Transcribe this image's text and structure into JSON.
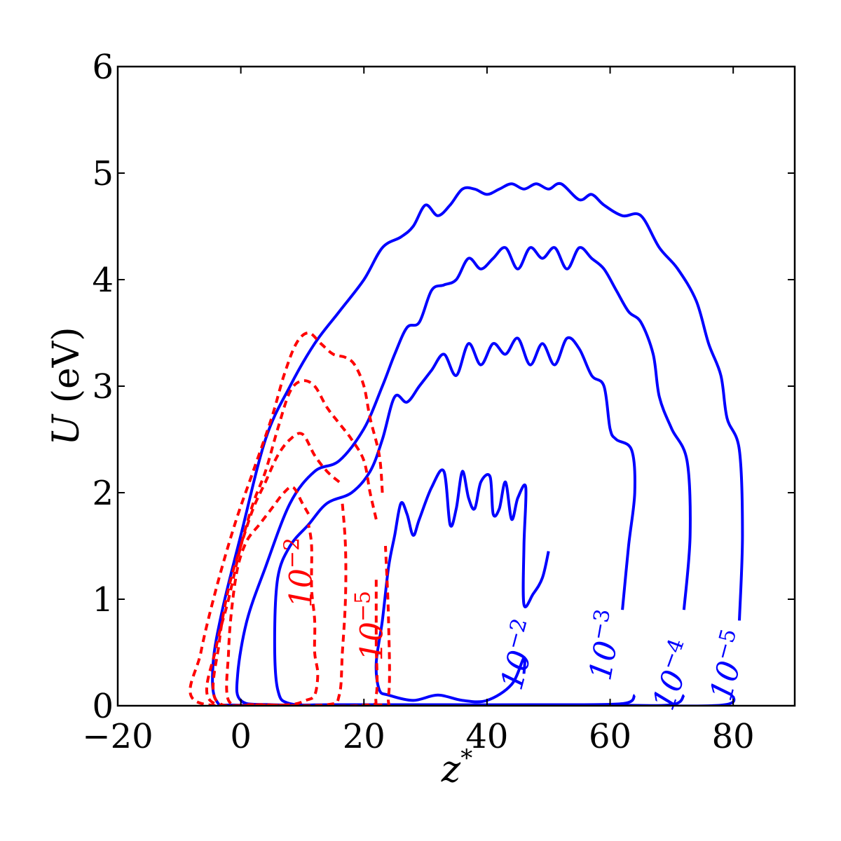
{
  "chart_data": {
    "type": "contour",
    "x_label_main": "z",
    "x_label_sup": "*",
    "y_label_main": "U",
    "y_label_rest": " (eV)",
    "xlim": [
      -20,
      90
    ],
    "ylim": [
      0,
      6
    ],
    "x_ticks": [
      -20,
      0,
      20,
      40,
      60,
      80
    ],
    "y_ticks": [
      0,
      1,
      2,
      3,
      4,
      5,
      6
    ],
    "x_tick_labels": [
      "−20",
      "0",
      "20",
      "40",
      "60",
      "80"
    ],
    "y_tick_labels": [
      "0",
      "1",
      "2",
      "3",
      "4",
      "5",
      "6"
    ],
    "grid": false,
    "colors": {
      "blue": "#0000ff",
      "red": "#ff0000"
    },
    "contours": [
      {
        "name": "blue-1e-2",
        "color": "#0000ff",
        "style": "solid",
        "label_base": "10",
        "label_exp": "−2",
        "points": [
          [
            50,
            1.45
          ],
          [
            49,
            1.2
          ],
          [
            47.5,
            1.05
          ],
          [
            46,
            0.95
          ],
          [
            46,
            1.5
          ],
          [
            46.3,
            2.05
          ],
          [
            45,
            1.95
          ],
          [
            44,
            1.75
          ],
          [
            43,
            2.1
          ],
          [
            42,
            1.85
          ],
          [
            41,
            1.8
          ],
          [
            40.5,
            2.15
          ],
          [
            39,
            2.1
          ],
          [
            38,
            1.85
          ],
          [
            37,
            1.95
          ],
          [
            36,
            2.2
          ],
          [
            35,
            1.85
          ],
          [
            34,
            1.7
          ],
          [
            33,
            2.2
          ],
          [
            31,
            2.05
          ],
          [
            29,
            1.75
          ],
          [
            28,
            1.6
          ],
          [
            27,
            1.8
          ],
          [
            26,
            1.9
          ],
          [
            25,
            1.6
          ],
          [
            24,
            1.3
          ],
          [
            23,
            0.8
          ],
          [
            22,
            0.4
          ],
          [
            22.5,
            0.15
          ],
          [
            24,
            0.1
          ],
          [
            28,
            0.05
          ],
          [
            32,
            0.1
          ],
          [
            36,
            0.05
          ],
          [
            40,
            0.05
          ],
          [
            44,
            0.2
          ],
          [
            46,
            0.45
          ],
          [
            46,
            0.3
          ]
        ]
      },
      {
        "name": "blue-1e-3",
        "color": "#0000ff",
        "style": "solid",
        "label_base": "10",
        "label_exp": "−3",
        "points": [
          [
            62,
            0.9
          ],
          [
            63,
            1.5
          ],
          [
            64,
            2.0
          ],
          [
            63.5,
            2.4
          ],
          [
            61,
            2.5
          ],
          [
            60,
            2.6
          ],
          [
            59,
            3.0
          ],
          [
            57,
            3.1
          ],
          [
            55,
            3.35
          ],
          [
            53,
            3.45
          ],
          [
            51,
            3.2
          ],
          [
            49,
            3.4
          ],
          [
            47,
            3.2
          ],
          [
            45,
            3.45
          ],
          [
            43,
            3.3
          ],
          [
            41,
            3.4
          ],
          [
            39,
            3.2
          ],
          [
            37,
            3.4
          ],
          [
            35,
            3.1
          ],
          [
            33,
            3.3
          ],
          [
            31,
            3.15
          ],
          [
            29,
            3.0
          ],
          [
            27,
            2.85
          ],
          [
            25,
            2.9
          ],
          [
            23,
            2.5
          ],
          [
            21,
            2.2
          ],
          [
            18,
            2.0
          ],
          [
            14,
            1.9
          ],
          [
            11,
            1.7
          ],
          [
            8,
            1.5
          ],
          [
            6,
            1.2
          ],
          [
            5.5,
            0.6
          ],
          [
            6,
            0.15
          ],
          [
            8,
            0.02
          ],
          [
            15,
            0.01
          ],
          [
            30,
            0.01
          ],
          [
            50,
            0.01
          ],
          [
            62,
            0.02
          ],
          [
            64,
            0.1
          ]
        ]
      },
      {
        "name": "blue-1e-4",
        "color": "#0000ff",
        "style": "solid",
        "label_base": "10",
        "label_exp": "−4",
        "points": [
          [
            72,
            0.9
          ],
          [
            73,
            1.6
          ],
          [
            72.5,
            2.3
          ],
          [
            70,
            2.6
          ],
          [
            68,
            2.9
          ],
          [
            67,
            3.3
          ],
          [
            65,
            3.6
          ],
          [
            63,
            3.7
          ],
          [
            61,
            3.9
          ],
          [
            59,
            4.1
          ],
          [
            57,
            4.2
          ],
          [
            55,
            4.3
          ],
          [
            53,
            4.1
          ],
          [
            51,
            4.3
          ],
          [
            49,
            4.2
          ],
          [
            47,
            4.3
          ],
          [
            45,
            4.1
          ],
          [
            43,
            4.3
          ],
          [
            41,
            4.2
          ],
          [
            39,
            4.1
          ],
          [
            37,
            4.2
          ],
          [
            35,
            4.0
          ],
          [
            33,
            3.95
          ],
          [
            31,
            3.9
          ],
          [
            29,
            3.6
          ],
          [
            27,
            3.55
          ],
          [
            25,
            3.3
          ],
          [
            23,
            3.0
          ],
          [
            20,
            2.6
          ],
          [
            16,
            2.3
          ],
          [
            12,
            2.2
          ],
          [
            8,
            1.9
          ],
          [
            4,
            1.3
          ],
          [
            1,
            0.8
          ],
          [
            -0.5,
            0.3
          ],
          [
            0,
            0.05
          ],
          [
            5,
            0.01
          ],
          [
            20,
            0.005
          ],
          [
            40,
            0.005
          ],
          [
            60,
            0.005
          ],
          [
            70,
            0.01
          ],
          [
            72,
            0.1
          ]
        ]
      },
      {
        "name": "blue-1e-5",
        "color": "#0000ff",
        "style": "solid",
        "label_base": "10",
        "label_exp": "−5",
        "points": [
          [
            81,
            0.8
          ],
          [
            81.5,
            1.6
          ],
          [
            81,
            2.4
          ],
          [
            79,
            2.7
          ],
          [
            78,
            3.1
          ],
          [
            76,
            3.4
          ],
          [
            74,
            3.8
          ],
          [
            71,
            4.1
          ],
          [
            68,
            4.3
          ],
          [
            65,
            4.6
          ],
          [
            62,
            4.6
          ],
          [
            59,
            4.7
          ],
          [
            57,
            4.8
          ],
          [
            55,
            4.75
          ],
          [
            52,
            4.9
          ],
          [
            50,
            4.85
          ],
          [
            48,
            4.9
          ],
          [
            46,
            4.85
          ],
          [
            44,
            4.9
          ],
          [
            42,
            4.85
          ],
          [
            40,
            4.8
          ],
          [
            38,
            4.85
          ],
          [
            36,
            4.85
          ],
          [
            34,
            4.7
          ],
          [
            32,
            4.6
          ],
          [
            30,
            4.7
          ],
          [
            28,
            4.5
          ],
          [
            26,
            4.4
          ],
          [
            23,
            4.3
          ],
          [
            20,
            4.0
          ],
          [
            16,
            3.7
          ],
          [
            12,
            3.4
          ],
          [
            8,
            3.0
          ],
          [
            4,
            2.5
          ],
          [
            0,
            1.6
          ],
          [
            -3,
            0.9
          ],
          [
            -4.5,
            0.4
          ],
          [
            -4,
            0.05
          ],
          [
            0,
            0.005
          ],
          [
            20,
            0.003
          ],
          [
            40,
            0.003
          ],
          [
            60,
            0.003
          ],
          [
            78,
            0.005
          ],
          [
            80,
            0.1
          ]
        ]
      },
      {
        "name": "red-1e-2",
        "color": "#ff0000",
        "style": "dashed",
        "label_base": "10",
        "label_exp": "−2",
        "points": [
          [
            11,
            1.8
          ],
          [
            10,
            1.9
          ],
          [
            8.5,
            2.05
          ],
          [
            7,
            2.0
          ],
          [
            5,
            1.85
          ],
          [
            3,
            1.7
          ],
          [
            1,
            1.55
          ],
          [
            -0.5,
            1.3
          ],
          [
            -1.5,
            0.9
          ],
          [
            -2,
            0.5
          ],
          [
            -2,
            0.05
          ],
          [
            2,
            0.01
          ],
          [
            8,
            0.01
          ],
          [
            10.5,
            0.05
          ],
          [
            12,
            0.1
          ],
          [
            12.5,
            0.3
          ],
          [
            12,
            0.5
          ],
          [
            12,
            0.8
          ],
          [
            11.5,
            1.1
          ],
          [
            11.5,
            1.5
          ],
          [
            11,
            1.7
          ]
        ]
      },
      {
        "name": "red-mid",
        "color": "#ff0000",
        "style": "dashed",
        "label_base": "",
        "label_exp": "",
        "points": [
          [
            16,
            2.1
          ],
          [
            14,
            2.2
          ],
          [
            12,
            2.35
          ],
          [
            10,
            2.55
          ],
          [
            8,
            2.5
          ],
          [
            6,
            2.35
          ],
          [
            4,
            2.1
          ],
          [
            2,
            1.85
          ],
          [
            0,
            1.5
          ],
          [
            -2,
            1.1
          ],
          [
            -3.5,
            0.6
          ],
          [
            -4,
            0.05
          ],
          [
            4,
            0.01
          ],
          [
            14,
            0.01
          ],
          [
            16,
            0.1
          ],
          [
            16.5,
            0.5
          ],
          [
            17,
            1.0
          ],
          [
            17,
            1.5
          ],
          [
            16.5,
            1.9
          ]
        ]
      },
      {
        "name": "red-1e-5",
        "color": "#ff0000",
        "style": "dashed",
        "label_base": "10",
        "label_exp": "−5",
        "points": [
          [
            22,
            1.75
          ],
          [
            21,
            2.0
          ],
          [
            20,
            2.3
          ],
          [
            18,
            2.5
          ],
          [
            16,
            2.65
          ],
          [
            14,
            2.8
          ],
          [
            12,
            3.0
          ],
          [
            10,
            3.05
          ],
          [
            8,
            2.95
          ],
          [
            6,
            2.6
          ],
          [
            4,
            2.2
          ],
          [
            2,
            1.9
          ],
          [
            0,
            1.5
          ],
          [
            -2,
            1.0
          ],
          [
            -4,
            0.55
          ],
          [
            -5,
            0.05
          ],
          [
            5,
            0.005
          ],
          [
            20,
            0.005
          ],
          [
            22,
            0.1
          ],
          [
            22,
            0.6
          ],
          [
            22,
            1.2
          ]
        ]
      },
      {
        "name": "red-outer",
        "color": "#ff0000",
        "style": "dashed",
        "label_base": "",
        "label_exp": "",
        "points": [
          [
            23,
            2.0
          ],
          [
            22.5,
            2.35
          ],
          [
            21,
            2.7
          ],
          [
            20,
            3.0
          ],
          [
            18.5,
            3.2
          ],
          [
            17,
            3.27
          ],
          [
            15,
            3.3
          ],
          [
            13,
            3.4
          ],
          [
            11,
            3.5
          ],
          [
            9,
            3.4
          ],
          [
            7,
            3.1
          ],
          [
            5,
            2.7
          ],
          [
            2,
            2.2
          ],
          [
            -1,
            1.7
          ],
          [
            -4,
            1.1
          ],
          [
            -6.5,
            0.5
          ],
          [
            -7.5,
            0.05
          ],
          [
            5,
            0.005
          ],
          [
            22,
            0.005
          ],
          [
            24,
            0.1
          ],
          [
            24,
            0.8
          ],
          [
            23.5,
            1.5
          ]
        ]
      }
    ],
    "contour_labels": [
      {
        "name": "contour-label-blue-1e-2",
        "color": "#0000ff",
        "base": "10",
        "exp": "−2",
        "x": 47,
        "y": 0.45,
        "angle": -75
      },
      {
        "name": "contour-label-blue-1e-3",
        "color": "#0000ff",
        "base": "10",
        "exp": "−3",
        "x": 61,
        "y": 0.55,
        "angle": -80
      },
      {
        "name": "contour-label-blue-1e-4",
        "color": "#0000ff",
        "base": "10",
        "exp": "−4",
        "x": 72,
        "y": 0.25,
        "angle": -70
      },
      {
        "name": "contour-label-blue-1e-5",
        "color": "#0000ff",
        "base": "10",
        "exp": "−5",
        "x": 81,
        "y": 0.35,
        "angle": -75
      },
      {
        "name": "contour-label-red-1e-2",
        "color": "#ff0000",
        "base": "10",
        "exp": "−2",
        "x": 11.5,
        "y": 1.25,
        "angle": -90
      },
      {
        "name": "contour-label-red-1e-5",
        "color": "#ff0000",
        "base": "10",
        "exp": "−5",
        "x": 23,
        "y": 0.75,
        "angle": -90
      }
    ]
  }
}
